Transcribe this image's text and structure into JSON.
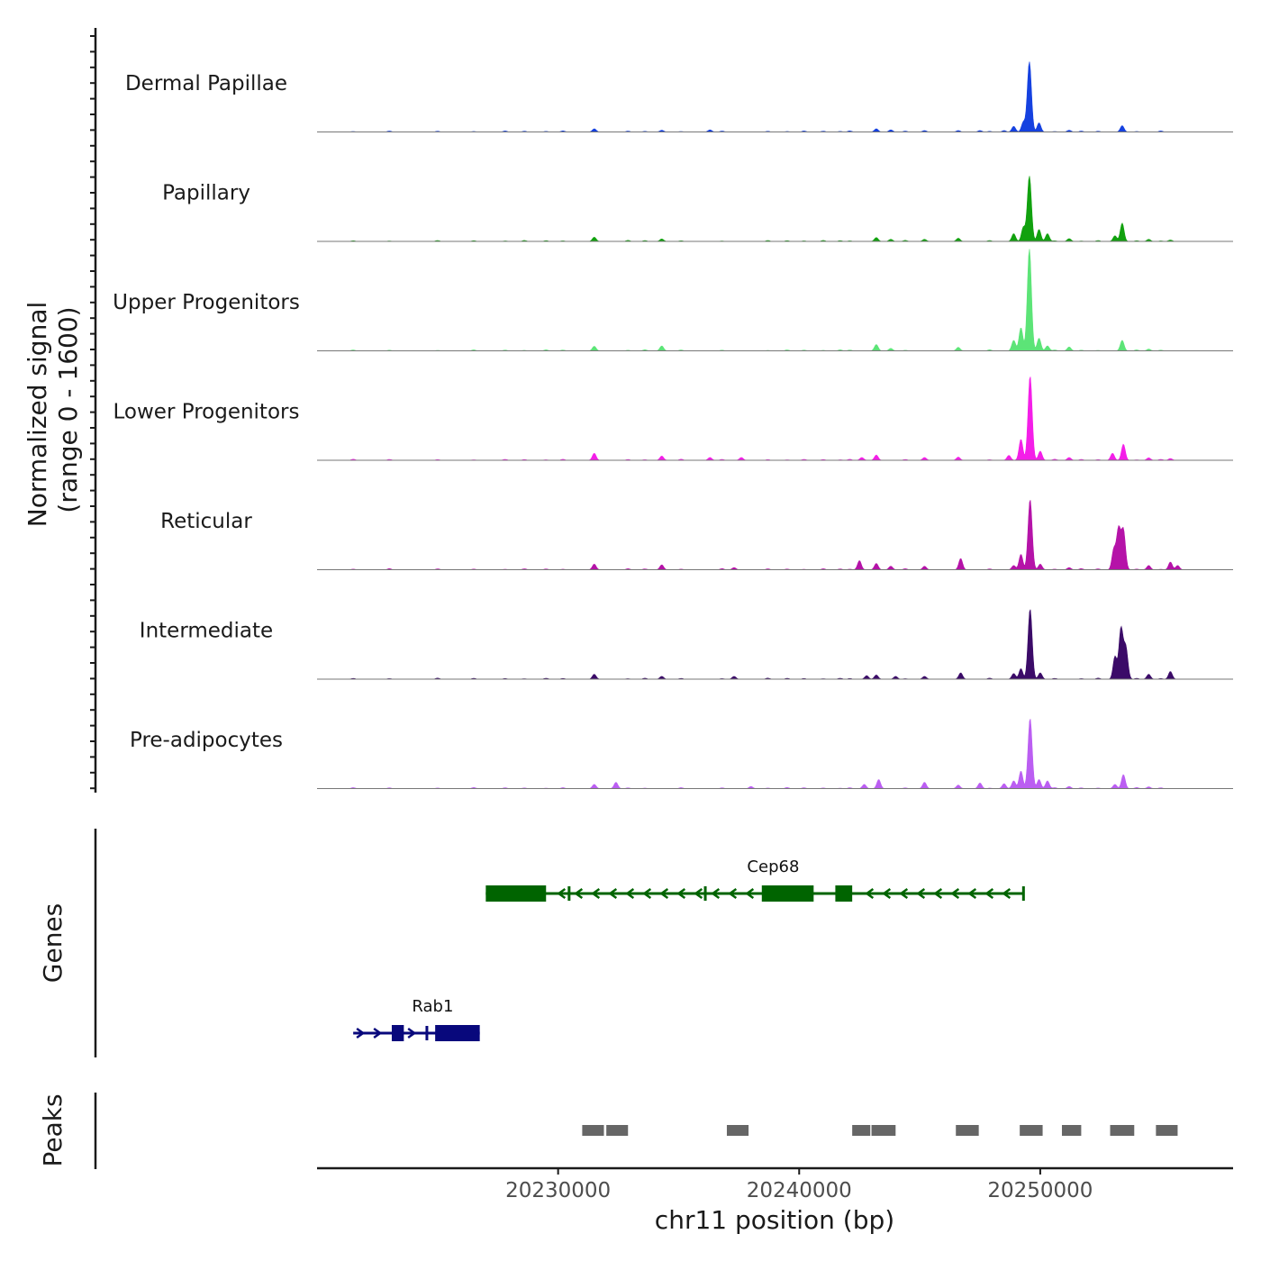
{
  "chart_data": {
    "type": "area",
    "title": "",
    "y_axis_title_line1": "Normalized signal",
    "y_axis_title_line2": "(range 0 - 1600)",
    "ylim": [
      0,
      1600
    ],
    "xlabel": "chr11 position (bp)",
    "xlim": [
      20220000,
      20258000
    ],
    "x_ticks": [
      20230000,
      20240000,
      20250000
    ],
    "x_tick_labels": [
      "20230000",
      "20240000",
      "20250000"
    ],
    "tracks": [
      {
        "name": "Dermal Papillae",
        "color": "#1541e0",
        "peaks": [
          [
            20231500,
            45
          ],
          [
            20234300,
            25
          ],
          [
            20236300,
            30
          ],
          [
            20243200,
            45
          ],
          [
            20243800,
            30
          ],
          [
            20245200,
            20
          ],
          [
            20246600,
            20
          ],
          [
            20247500,
            20
          ],
          [
            20248500,
            20
          ],
          [
            20248900,
            80
          ],
          [
            20249300,
            140
          ],
          [
            20249550,
            1000
          ],
          [
            20249950,
            130
          ],
          [
            20251200,
            25
          ],
          [
            20253400,
            90
          ]
        ]
      },
      {
        "name": "Papillary",
        "color": "#11a10e",
        "peaks": [
          [
            20231500,
            60
          ],
          [
            20234300,
            35
          ],
          [
            20243200,
            55
          ],
          [
            20243800,
            30
          ],
          [
            20245200,
            30
          ],
          [
            20246600,
            45
          ],
          [
            20248900,
            110
          ],
          [
            20249300,
            200
          ],
          [
            20249550,
            930
          ],
          [
            20249950,
            170
          ],
          [
            20250300,
            110
          ],
          [
            20251200,
            40
          ],
          [
            20253400,
            260
          ],
          [
            20253100,
            80
          ],
          [
            20254500,
            30
          ],
          [
            20255400,
            20
          ]
        ]
      },
      {
        "name": "Upper Progenitors",
        "color": "#5ce477",
        "peaks": [
          [
            20231500,
            65
          ],
          [
            20234300,
            70
          ],
          [
            20243200,
            90
          ],
          [
            20243800,
            35
          ],
          [
            20246600,
            50
          ],
          [
            20248900,
            150
          ],
          [
            20249200,
            330
          ],
          [
            20249550,
            1450
          ],
          [
            20249950,
            180
          ],
          [
            20250300,
            70
          ],
          [
            20251200,
            55
          ],
          [
            20253400,
            150
          ],
          [
            20254500,
            25
          ]
        ]
      },
      {
        "name": "Lower Progenitors",
        "color": "#f41ee8",
        "peaks": [
          [
            20231500,
            100
          ],
          [
            20234300,
            60
          ],
          [
            20236300,
            40
          ],
          [
            20237600,
            40
          ],
          [
            20242600,
            40
          ],
          [
            20243200,
            75
          ],
          [
            20245200,
            40
          ],
          [
            20246600,
            45
          ],
          [
            20248700,
            70
          ],
          [
            20249200,
            300
          ],
          [
            20249580,
            1200
          ],
          [
            20250000,
            130
          ],
          [
            20251200,
            40
          ],
          [
            20253000,
            100
          ],
          [
            20253450,
            230
          ],
          [
            20254500,
            35
          ],
          [
            20255400,
            25
          ]
        ]
      },
      {
        "name": "Reticular",
        "color": "#b513a8",
        "peaks": [
          [
            20231500,
            80
          ],
          [
            20234300,
            70
          ],
          [
            20237300,
            30
          ],
          [
            20242500,
            130
          ],
          [
            20243200,
            90
          ],
          [
            20243800,
            50
          ],
          [
            20245200,
            50
          ],
          [
            20246700,
            160
          ],
          [
            20248900,
            60
          ],
          [
            20249200,
            220
          ],
          [
            20249580,
            1000
          ],
          [
            20250000,
            80
          ],
          [
            20251200,
            30
          ],
          [
            20253050,
            280
          ],
          [
            20253250,
            580
          ],
          [
            20253450,
            560
          ],
          [
            20254500,
            60
          ],
          [
            20255400,
            110
          ],
          [
            20255700,
            60
          ]
        ]
      },
      {
        "name": "Intermediate",
        "color": "#3b0b68",
        "peaks": [
          [
            20231500,
            70
          ],
          [
            20234300,
            40
          ],
          [
            20237300,
            40
          ],
          [
            20242800,
            50
          ],
          [
            20243200,
            60
          ],
          [
            20244000,
            40
          ],
          [
            20245200,
            40
          ],
          [
            20246700,
            90
          ],
          [
            20248900,
            80
          ],
          [
            20249200,
            150
          ],
          [
            20249580,
            1000
          ],
          [
            20250000,
            90
          ],
          [
            20253100,
            320
          ],
          [
            20253350,
            720
          ],
          [
            20253550,
            450
          ],
          [
            20254500,
            70
          ],
          [
            20255400,
            110
          ]
        ]
      },
      {
        "name": "Pre-adipocytes",
        "color": "#bb5ef2",
        "peaks": [
          [
            20231500,
            60
          ],
          [
            20232400,
            90
          ],
          [
            20238000,
            30
          ],
          [
            20242700,
            60
          ],
          [
            20243300,
            130
          ],
          [
            20245200,
            90
          ],
          [
            20246600,
            50
          ],
          [
            20247500,
            80
          ],
          [
            20248500,
            70
          ],
          [
            20248900,
            110
          ],
          [
            20249200,
            250
          ],
          [
            20249580,
            1000
          ],
          [
            20249950,
            130
          ],
          [
            20250300,
            110
          ],
          [
            20251200,
            30
          ],
          [
            20253100,
            60
          ],
          [
            20253450,
            200
          ],
          [
            20254500,
            25
          ]
        ]
      }
    ],
    "genes_axis_label": "Genes",
    "genes": [
      {
        "name": "Cep68",
        "color": "#006400",
        "start": 20227000,
        "end": 20249350,
        "strand": "-",
        "row": 0,
        "exons": [
          [
            20227000,
            20229500
          ],
          [
            20230400,
            20230500
          ],
          [
            20236050,
            20236150
          ],
          [
            20238450,
            20240600
          ],
          [
            20241500,
            20242200
          ],
          [
            20249250,
            20249350
          ]
        ]
      },
      {
        "name": "Rab1",
        "color": "#08087c",
        "start": 20221500,
        "end": 20226750,
        "strand": "+",
        "row": 1,
        "exons": [
          [
            20223100,
            20223600
          ],
          [
            20224500,
            20224600
          ],
          [
            20224900,
            20226750
          ]
        ]
      }
    ],
    "peaks_axis_label": "Peaks",
    "peak_regions": [
      [
        20231000,
        20231900
      ],
      [
        20232000,
        20232900
      ],
      [
        20237000,
        20237900
      ],
      [
        20242200,
        20242950
      ],
      [
        20243000,
        20244000
      ],
      [
        20246500,
        20247450
      ],
      [
        20249150,
        20250100
      ],
      [
        20250900,
        20251700
      ],
      [
        20252900,
        20253900
      ],
      [
        20254800,
        20255700
      ]
    ]
  }
}
